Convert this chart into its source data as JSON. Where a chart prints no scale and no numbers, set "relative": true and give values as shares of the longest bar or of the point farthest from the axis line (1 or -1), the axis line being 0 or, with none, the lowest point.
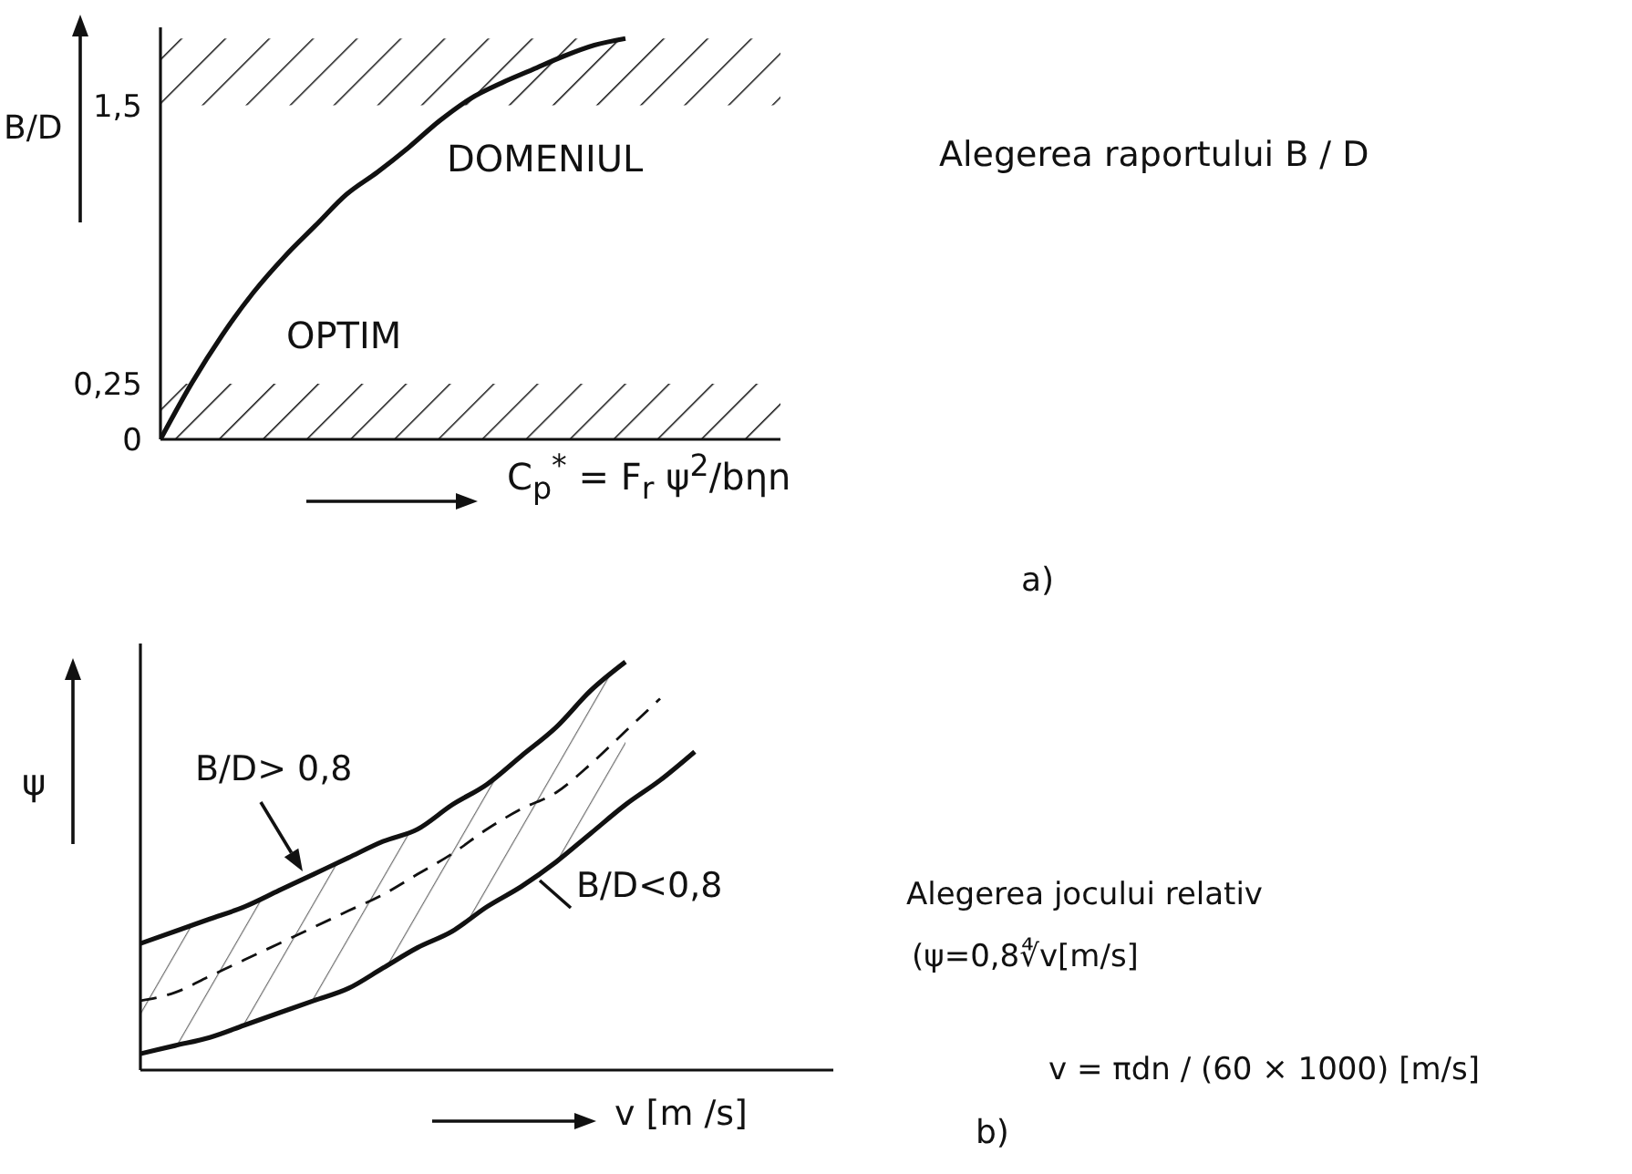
{
  "chart_data": [
    {
      "type": "line",
      "xlabel": "C$_{p}$$^{*}$ = F$_{r}$ ψ$^{2}$/bηn",
      "ylabel": "B/D",
      "annotations": [
        "Alegerea raportului B / D",
        "DOMENIUL",
        "OPTIM",
        "a)"
      ],
      "categories": [
        null,
        null,
        null,
        null,
        null,
        null,
        null,
        null,
        null,
        null,
        null,
        null,
        null,
        null,
        null,
        null,
        null,
        null,
        null,
        null,
        null
      ],
      "series": [
        {
          "color": "#111111",
          "values": [
            0,
            0.25,
            0.47,
            0.66,
            0.82,
            0.96,
            1.1,
            1.2,
            1.31,
            1.43,
            1.53,
            1.6,
            1.66,
            1.72,
            1.77,
            1.8,
            null,
            null,
            null,
            null,
            null
          ]
        }
      ],
      "ylim": [
        0,
        1.85
      ],
      "yticks": [
        0,
        {
          "value": 0.25,
          "label": "0,25"
        },
        {
          "value": 1.5,
          "label": "1,5"
        }
      ],
      "bands": [
        {
          "axis": "y",
          "from": 0,
          "to": 0.25,
          "color": "#111111"
        },
        {
          "axis": "y",
          "from": 1.5,
          "to": 1.8,
          "color": "#111111"
        }
      ],
      "tick_labels": "y"
    },
    {
      "type": "line",
      "xlabel": "v [m /s]",
      "ylabel": "ψ",
      "relative": true,
      "tick_labels": false,
      "annotations": [
        "Alegerea jocului relativ",
        "(ψ=0,8∜v[m/s]",
        "v = πdn / (60 × 1000) [m/s]",
        "b)"
      ],
      "categories": [
        null,
        null,
        null,
        null,
        null,
        null,
        null,
        null,
        null,
        null,
        null,
        null,
        null,
        null,
        null,
        null,
        null,
        null,
        null,
        null,
        null
      ],
      "series": [
        {
          "name": "B/D> 0,8",
          "color": "#111111",
          "values": [
            0.31,
            0.34,
            0.37,
            0.4,
            0.44,
            0.48,
            0.52,
            0.56,
            0.59,
            0.65,
            0.7,
            0.77,
            0.84,
            0.93,
            1,
            null,
            null,
            null,
            null,
            null,
            null
          ]
        },
        {
          "color": "#111111",
          "line_style": "dashed",
          "values": [
            0.17,
            0.19,
            0.23,
            0.27,
            0.31,
            0.35,
            0.39,
            0.43,
            0.48,
            0.53,
            0.59,
            0.64,
            0.68,
            0.75,
            0.83,
            0.91,
            null,
            null,
            null,
            null,
            null
          ],
          "lower": [
            0.04,
            0.06,
            0.08,
            0.11,
            0.14,
            0.17,
            0.2,
            0.25,
            0.3,
            0.34,
            0.4,
            0.45,
            0.51,
            0.58,
            0.65,
            null,
            null,
            null,
            null,
            null,
            null
          ],
          "upper": [
            0.31,
            0.34,
            0.37,
            0.4,
            0.44,
            0.48,
            0.52,
            0.56,
            0.59,
            0.65,
            0.7,
            0.77,
            0.84,
            0.93,
            1,
            null,
            null,
            null,
            null,
            null,
            null
          ]
        },
        {
          "name": "B/D<0,8",
          "color": "#111111",
          "values": [
            0.04,
            0.06,
            0.08,
            0.11,
            0.14,
            0.17,
            0.2,
            0.25,
            0.3,
            0.34,
            0.4,
            0.45,
            0.51,
            0.58,
            0.65,
            0.71,
            0.78,
            null,
            null,
            null,
            null
          ]
        }
      ]
    }
  ]
}
